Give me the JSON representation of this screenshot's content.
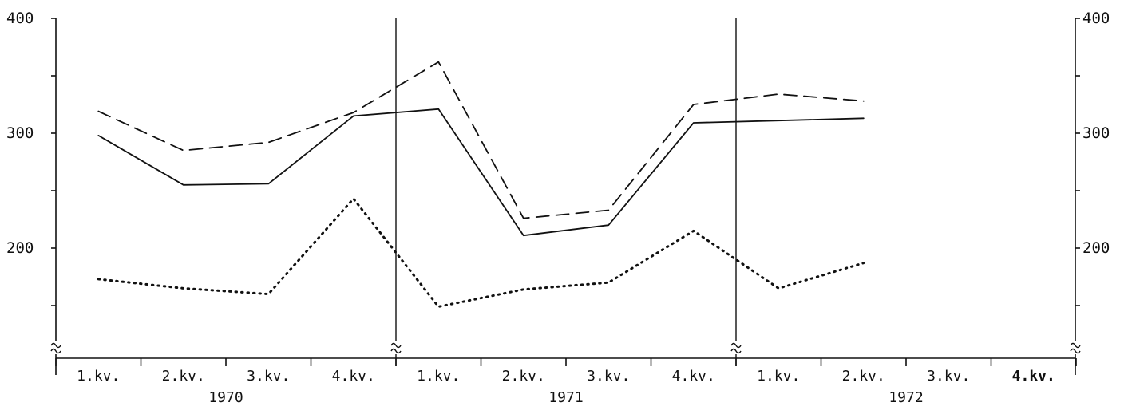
{
  "chart_data": {
    "type": "line",
    "ylim": [
      100,
      400
    ],
    "y_axis_break": true,
    "yticks_major": [
      200,
      300,
      400
    ],
    "ytick_labels": [
      "200",
      "300",
      "400"
    ],
    "yticks_minor": [
      150,
      250,
      350
    ],
    "grid": false,
    "legend": "none",
    "groups": [
      {
        "year": "1970",
        "quarters": [
          "1.kv.",
          "2.kv.",
          "3.kv.",
          "4.kv."
        ]
      },
      {
        "year": "1971",
        "quarters": [
          "1.kv.",
          "2.kv.",
          "3.kv.",
          "4.kv."
        ]
      },
      {
        "year": "1972",
        "quarters": [
          "1.kv.",
          "2.kv.",
          "3.kv.",
          "4.kv."
        ]
      }
    ],
    "bold_quarter_index": 11,
    "series": [
      {
        "style": "solid",
        "color": "#111111",
        "values": [
          298,
          255,
          256,
          315,
          321,
          211,
          220,
          309,
          311,
          313
        ]
      },
      {
        "style": "dashed",
        "color": "#111111",
        "values": [
          319,
          285,
          292,
          318,
          362,
          226,
          233,
          325,
          334,
          328
        ]
      },
      {
        "style": "dotted",
        "color": "#111111",
        "values": [
          173,
          165,
          160,
          243,
          149,
          164,
          170,
          215,
          165,
          187
        ]
      }
    ]
  }
}
